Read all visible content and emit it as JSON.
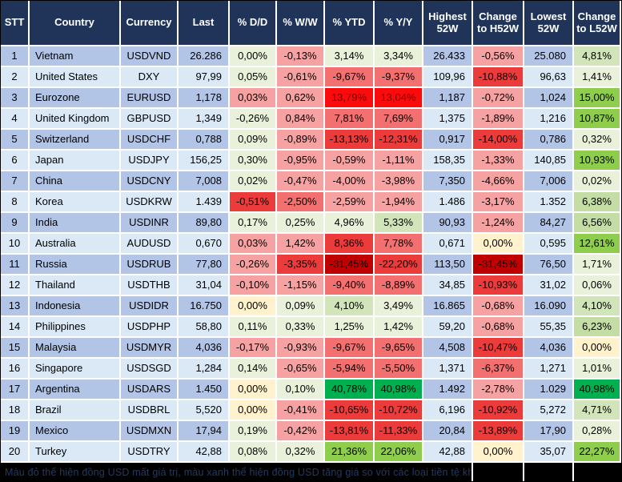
{
  "palette": {
    "g0": "#EAF1DA",
    "g1": "#D2E5BA",
    "g2": "#C3DDA5",
    "g3": "#8FCE4D",
    "g4": "#00B050",
    "y": "#FFF2CC",
    "p": "#F7A2A2",
    "r2": "#F37070",
    "r3": "#EC3B3B",
    "rf": "#FB0B0B",
    "dr": "#C00000",
    "rf_text": "#7A0000",
    "header_bg": "#20345A",
    "row_odd": "#B3C5E6",
    "row_even": "#DBE9F6",
    "footer_bg": "#000000",
    "footer_text": "#223A66"
  },
  "chart_data": {
    "type": "table",
    "columns": [
      "STT",
      "Country",
      "Currency",
      "Last",
      "% D/D",
      "% W/W",
      "% YTD",
      "% Y/Y",
      "Highest 52W",
      "Change to H52W",
      "Lowest 52W",
      "Change to L52W"
    ],
    "rows": [
      {
        "stt": "1",
        "country": "Vietnam",
        "currency": "USDVND",
        "last": "26.286",
        "dd": [
          "0,00%",
          "g0"
        ],
        "ww": [
          "-0,13%",
          "p"
        ],
        "ytd": [
          "3,14%",
          "g0"
        ],
        "yy": [
          "3,34%",
          "g0"
        ],
        "high": "26.433",
        "chg_h": [
          "-0,56%",
          "p"
        ],
        "low": "25.080",
        "chg_l": [
          "4,81%",
          "g1"
        ]
      },
      {
        "stt": "2",
        "country": "United States",
        "currency": "DXY",
        "last": "97,99",
        "dd": [
          "0,05%",
          "g0"
        ],
        "ww": [
          "-0,61%",
          "p"
        ],
        "ytd": [
          "-9,67%",
          "r2"
        ],
        "yy": [
          "-9,37%",
          "r2"
        ],
        "high": "109,96",
        "chg_h": [
          "-10,88%",
          "r3"
        ],
        "low": "96,63",
        "chg_l": [
          "1,41%",
          "g0"
        ]
      },
      {
        "stt": "3",
        "country": "Eurozone",
        "currency": "EURUSD",
        "last": "1,178",
        "dd": [
          "0,03%",
          "p"
        ],
        "ww": [
          "0,62%",
          "p"
        ],
        "ytd": [
          "13,79%",
          "rf"
        ],
        "yy": [
          "13,04%",
          "rf"
        ],
        "high": "1,187",
        "chg_h": [
          "-0,72%",
          "p"
        ],
        "low": "1,024",
        "chg_l": [
          "15,00%",
          "g3"
        ]
      },
      {
        "stt": "4",
        "country": "United Kingdom",
        "currency": "GBPUSD",
        "last": "1,349",
        "dd": [
          "-0,26%",
          "g0"
        ],
        "ww": [
          "0,84%",
          "p"
        ],
        "ytd": [
          "7,81%",
          "r2"
        ],
        "yy": [
          "7,69%",
          "r2"
        ],
        "high": "1,375",
        "chg_h": [
          "-1,89%",
          "p"
        ],
        "low": "1,216",
        "chg_l": [
          "10,87%",
          "g3"
        ]
      },
      {
        "stt": "5",
        "country": "Switzerland",
        "currency": "USDCHF",
        "last": "0,788",
        "dd": [
          "0,09%",
          "g0"
        ],
        "ww": [
          "-0,89%",
          "p"
        ],
        "ytd": [
          "-13,13%",
          "r3"
        ],
        "yy": [
          "-12,31%",
          "r3"
        ],
        "high": "0,917",
        "chg_h": [
          "-14,00%",
          "r3"
        ],
        "low": "0,786",
        "chg_l": [
          "0,32%",
          "g0"
        ]
      },
      {
        "stt": "6",
        "country": "Japan",
        "currency": "USDJPY",
        "last": "156,25",
        "dd": [
          "0,30%",
          "g0"
        ],
        "ww": [
          "-0,95%",
          "p"
        ],
        "ytd": [
          "-0,59%",
          "p"
        ],
        "yy": [
          "-1,11%",
          "p"
        ],
        "high": "158,35",
        "chg_h": [
          "-1,33%",
          "p"
        ],
        "low": "140,85",
        "chg_l": [
          "10,93%",
          "g3"
        ]
      },
      {
        "stt": "7",
        "country": "China",
        "currency": "USDCNY",
        "last": "7,008",
        "dd": [
          "0,02%",
          "g0"
        ],
        "ww": [
          "-0,47%",
          "p"
        ],
        "ytd": [
          "-4,00%",
          "p"
        ],
        "yy": [
          "-3,98%",
          "p"
        ],
        "high": "7,350",
        "chg_h": [
          "-4,66%",
          "p"
        ],
        "low": "7,006",
        "chg_l": [
          "0,02%",
          "g0"
        ]
      },
      {
        "stt": "8",
        "country": "Korea",
        "currency": "USDKRW",
        "last": "1.439",
        "dd": [
          "-0,51%",
          "r3"
        ],
        "ww": [
          "-2,50%",
          "r2"
        ],
        "ytd": [
          "-2,59%",
          "p"
        ],
        "yy": [
          "-1,94%",
          "p"
        ],
        "high": "1.486",
        "chg_h": [
          "-3,17%",
          "p"
        ],
        "low": "1.352",
        "chg_l": [
          "6,38%",
          "g2"
        ]
      },
      {
        "stt": "9",
        "country": "India",
        "currency": "USDINR",
        "last": "89,80",
        "dd": [
          "0,17%",
          "g0"
        ],
        "ww": [
          "0,25%",
          "g0"
        ],
        "ytd": [
          "4,96%",
          "g0"
        ],
        "yy": [
          "5,33%",
          "g1"
        ],
        "high": "90,93",
        "chg_h": [
          "-1,24%",
          "p"
        ],
        "low": "84,27",
        "chg_l": [
          "6,56%",
          "g2"
        ]
      },
      {
        "stt": "10",
        "country": "Australia",
        "currency": "AUDUSD",
        "last": "0,670",
        "dd": [
          "0,03%",
          "p"
        ],
        "ww": [
          "1,42%",
          "p"
        ],
        "ytd": [
          "8,36%",
          "r3"
        ],
        "yy": [
          "7,78%",
          "r2"
        ],
        "high": "0,671",
        "chg_h": [
          "0,00%",
          "y"
        ],
        "low": "0,595",
        "chg_l": [
          "12,61%",
          "g3"
        ]
      },
      {
        "stt": "11",
        "country": "Russia",
        "currency": "USDRUB",
        "last": "77,80",
        "dd": [
          "-0,26%",
          "p"
        ],
        "ww": [
          "-3,35%",
          "r3"
        ],
        "ytd": [
          "-31,45%",
          "dr"
        ],
        "yy": [
          "-22,20%",
          "r3"
        ],
        "high": "113,50",
        "chg_h": [
          "-31,45%",
          "dr"
        ],
        "low": "76,50",
        "chg_l": [
          "1,71%",
          "g0"
        ]
      },
      {
        "stt": "12",
        "country": "Thailand",
        "currency": "USDTHB",
        "last": "31,04",
        "dd": [
          "-0,10%",
          "p"
        ],
        "ww": [
          "-1,15%",
          "p"
        ],
        "ytd": [
          "-9,40%",
          "r2"
        ],
        "yy": [
          "-8,89%",
          "r2"
        ],
        "high": "34,85",
        "chg_h": [
          "-10,93%",
          "r3"
        ],
        "low": "31,02",
        "chg_l": [
          "0,06%",
          "g0"
        ]
      },
      {
        "stt": "13",
        "country": "Indonesia",
        "currency": "USDIDR",
        "last": "16.750",
        "dd": [
          "0,00%",
          "y"
        ],
        "ww": [
          "0,09%",
          "g0"
        ],
        "ytd": [
          "4,10%",
          "g1"
        ],
        "yy": [
          "3,49%",
          "g0"
        ],
        "high": "16.865",
        "chg_h": [
          "-0,68%",
          "p"
        ],
        "low": "16.090",
        "chg_l": [
          "4,10%",
          "g1"
        ]
      },
      {
        "stt": "14",
        "country": "Philippines",
        "currency": "USDPHP",
        "last": "58,80",
        "dd": [
          "0,11%",
          "g0"
        ],
        "ww": [
          "0,33%",
          "g0"
        ],
        "ytd": [
          "1,25%",
          "g0"
        ],
        "yy": [
          "1,42%",
          "g0"
        ],
        "high": "59,20",
        "chg_h": [
          "-0,68%",
          "p"
        ],
        "low": "55,35",
        "chg_l": [
          "6,23%",
          "g2"
        ]
      },
      {
        "stt": "15",
        "country": "Malaysia",
        "currency": "USDMYR",
        "last": "4,036",
        "dd": [
          "-0,17%",
          "p"
        ],
        "ww": [
          "-0,93%",
          "p"
        ],
        "ytd": [
          "-9,67%",
          "r2"
        ],
        "yy": [
          "-9,65%",
          "r2"
        ],
        "high": "4,508",
        "chg_h": [
          "-10,47%",
          "r3"
        ],
        "low": "4,036",
        "chg_l": [
          "0,00%",
          "y"
        ]
      },
      {
        "stt": "16",
        "country": "Singapore",
        "currency": "USDSGD",
        "last": "1,284",
        "dd": [
          "0,14%",
          "g0"
        ],
        "ww": [
          "-0,65%",
          "p"
        ],
        "ytd": [
          "-5,94%",
          "r2"
        ],
        "yy": [
          "-5,50%",
          "r2"
        ],
        "high": "1,371",
        "chg_h": [
          "-6,37%",
          "r2"
        ],
        "low": "1,271",
        "chg_l": [
          "1,01%",
          "g0"
        ]
      },
      {
        "stt": "17",
        "country": "Argentina",
        "currency": "USDARS",
        "last": "1.450",
        "dd": [
          "0,00%",
          "y"
        ],
        "ww": [
          "0,10%",
          "g0"
        ],
        "ytd": [
          "40,78%",
          "g4"
        ],
        "yy": [
          "40,98%",
          "g4"
        ],
        "high": "1.492",
        "chg_h": [
          "-2,78%",
          "p"
        ],
        "low": "1.029",
        "chg_l": [
          "40,98%",
          "g4"
        ]
      },
      {
        "stt": "18",
        "country": "Brazil",
        "currency": "USDBRL",
        "last": "5,520",
        "dd": [
          "0,00%",
          "y"
        ],
        "ww": [
          "-0,41%",
          "p"
        ],
        "ytd": [
          "-10,65%",
          "r3"
        ],
        "yy": [
          "-10,72%",
          "r3"
        ],
        "high": "6,196",
        "chg_h": [
          "-10,92%",
          "r3"
        ],
        "low": "5,272",
        "chg_l": [
          "4,71%",
          "g1"
        ]
      },
      {
        "stt": "19",
        "country": "Mexico",
        "currency": "USDMXN",
        "last": "17,94",
        "dd": [
          "0,19%",
          "g0"
        ],
        "ww": [
          "-0,42%",
          "p"
        ],
        "ytd": [
          "-13,81%",
          "r3"
        ],
        "yy": [
          "-11,33%",
          "r3"
        ],
        "high": "20,84",
        "chg_h": [
          "-13,89%",
          "r3"
        ],
        "low": "17,90",
        "chg_l": [
          "0,28%",
          "g0"
        ]
      },
      {
        "stt": "20",
        "country": "Turkey",
        "currency": "USDTRY",
        "last": "42,88",
        "dd": [
          "0,08%",
          "g0"
        ],
        "ww": [
          "0,32%",
          "g0"
        ],
        "ytd": [
          "21,36%",
          "g3"
        ],
        "yy": [
          "22,06%",
          "g3"
        ],
        "high": "42,88",
        "chg_h": [
          "0,00%",
          "y"
        ],
        "low": "35,07",
        "chg_l": [
          "22,27%",
          "g3"
        ]
      }
    ],
    "footnote": "Màu đỏ thể hiện đồng USD mất giá trị, màu xanh thể hiện đồng USD tăng giá so với các loại tiền tệ khác."
  }
}
